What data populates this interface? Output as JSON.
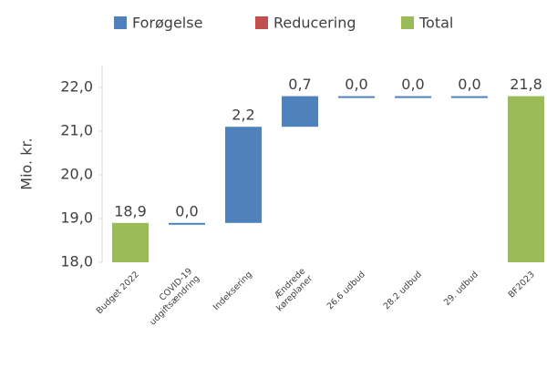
{
  "chart_data": {
    "type": "waterfall",
    "y_label": "Mio. kr.",
    "categories": [
      "Budget 2022",
      "COVID-19\nudgiftsændring",
      "Indeksering",
      "Ændrede\nkøreplaner",
      "26.6 udbud",
      "28.2 udbud",
      "29. udbud",
      "BF2023"
    ],
    "series": [
      {
        "name": "Forøgelse",
        "color": "#4f81bd",
        "values": [
          null,
          0.0,
          2.2,
          0.7,
          0.0,
          0.0,
          0.0,
          null
        ],
        "value_labels": [
          null,
          "0,0",
          "2,2",
          "0,7",
          "0,0",
          "0,0",
          "0,0",
          null
        ]
      },
      {
        "name": "Reducering",
        "color": "#c0504d",
        "values": [
          null,
          null,
          null,
          null,
          null,
          null,
          null,
          null
        ]
      },
      {
        "name": "Total",
        "color": "#9bbb59",
        "values": [
          18.9,
          null,
          null,
          null,
          null,
          null,
          null,
          21.8
        ],
        "value_labels": [
          "18,9",
          null,
          null,
          null,
          null,
          null,
          null,
          "21,8"
        ]
      }
    ],
    "ylim": [
      18,
      22.5
    ],
    "yticks": [
      {
        "value": 18,
        "label": "18,0"
      },
      {
        "value": 19,
        "label": "19,0"
      },
      {
        "value": 20,
        "label": "20,0"
      },
      {
        "value": 21,
        "label": "21,0"
      },
      {
        "value": 22,
        "label": "22,0"
      }
    ]
  }
}
